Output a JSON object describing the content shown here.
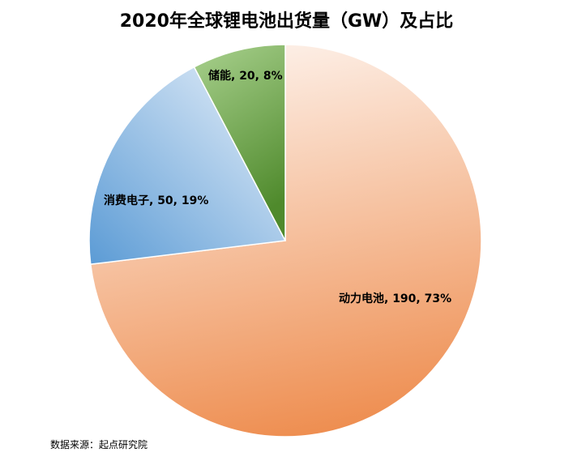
{
  "chart_data": {
    "type": "pie",
    "title": "2020年全球锂电池出货量（GW）及占比",
    "slices": [
      {
        "name": "动力电池",
        "value": 190,
        "percent": "73%",
        "label": "动力电池, 190, 73%",
        "color_light": "#fdf0e8",
        "color_dark": "#ee8d4f"
      },
      {
        "name": "消费电子",
        "value": 50,
        "percent": "19%",
        "label": "消费电子, 50, 19%",
        "color_light": "#e9f1fa",
        "color_dark": "#5b9bd5"
      },
      {
        "name": "储能",
        "value": 20,
        "percent": "8%",
        "label": "储能, 20, 8%",
        "color_light": "#a9d18e",
        "color_dark": "#4f8a2c"
      }
    ],
    "source": "数据来源：起点研究院"
  }
}
